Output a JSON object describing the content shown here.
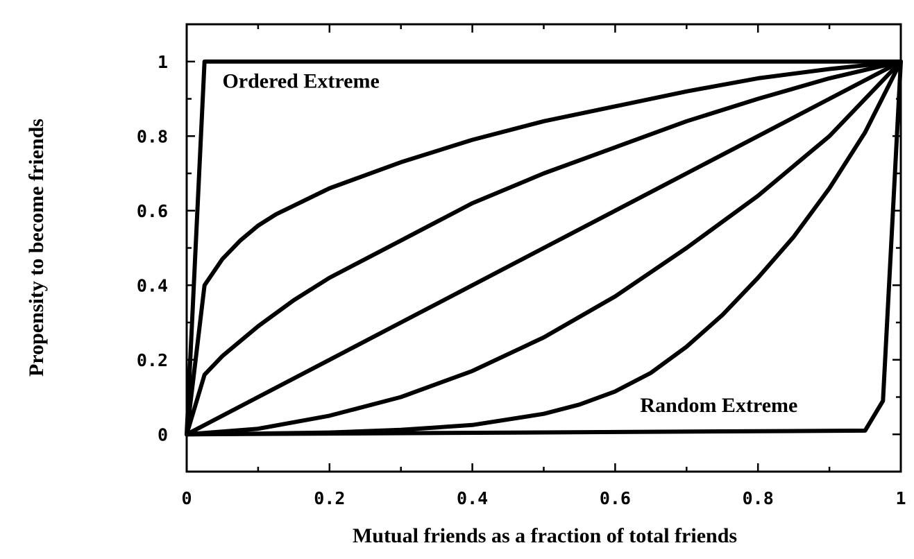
{
  "chart_data": {
    "type": "line",
    "title": "",
    "xlabel": "Mutual friends as a fraction of total friends",
    "ylabel": "Propensity to become friends",
    "xlim": [
      0,
      1
    ],
    "ylim": [
      -0.1,
      1.1
    ],
    "x_ticks": [
      0,
      0.2,
      0.4,
      0.6,
      0.8,
      1
    ],
    "x_tick_labels": [
      "0",
      "0.2",
      "0.4",
      "0.6",
      "0.8",
      "1"
    ],
    "y_ticks": [
      0,
      0.2,
      0.4,
      0.6,
      0.8,
      1
    ],
    "y_tick_labels": [
      "0",
      "0.2",
      "0.4",
      "0.6",
      "0.8",
      "1"
    ],
    "grid": false,
    "annotations": [
      {
        "text": "Ordered Extreme",
        "x": 0.05,
        "y": 0.93
      },
      {
        "text": "Random Extreme",
        "x": 0.635,
        "y": 0.06
      }
    ],
    "series": [
      {
        "x": [
          0,
          0.025,
          1
        ],
        "y": [
          0,
          1,
          1
        ]
      },
      {
        "x": [
          0,
          0.025,
          0.05,
          0.075,
          0.1,
          0.125,
          0.2,
          0.3,
          0.4,
          0.5,
          0.6,
          0.7,
          0.8,
          0.9,
          1
        ],
        "y": [
          0,
          0.4,
          0.47,
          0.52,
          0.56,
          0.59,
          0.66,
          0.73,
          0.79,
          0.84,
          0.88,
          0.92,
          0.955,
          0.98,
          1
        ]
      },
      {
        "x": [
          0,
          0.025,
          0.05,
          0.1,
          0.15,
          0.2,
          0.3,
          0.4,
          0.5,
          0.6,
          0.7,
          0.8,
          0.9,
          1
        ],
        "y": [
          0,
          0.16,
          0.21,
          0.29,
          0.36,
          0.42,
          0.52,
          0.62,
          0.7,
          0.77,
          0.84,
          0.9,
          0.955,
          1
        ]
      },
      {
        "x": [
          0,
          0.1,
          0.2,
          0.3,
          0.4,
          0.5,
          0.6,
          0.7,
          0.8,
          0.9,
          1
        ],
        "y": [
          0,
          0.1,
          0.2,
          0.3,
          0.4,
          0.5,
          0.6,
          0.7,
          0.8,
          0.9,
          1
        ]
      },
      {
        "x": [
          0,
          0.1,
          0.2,
          0.3,
          0.4,
          0.5,
          0.6,
          0.7,
          0.8,
          0.9,
          1
        ],
        "y": [
          0,
          0.015,
          0.05,
          0.1,
          0.17,
          0.26,
          0.37,
          0.5,
          0.64,
          0.8,
          1
        ]
      },
      {
        "x": [
          0,
          0.1,
          0.2,
          0.3,
          0.4,
          0.5,
          0.55,
          0.6,
          0.65,
          0.7,
          0.75,
          0.8,
          0.85,
          0.9,
          0.95,
          1
        ],
        "y": [
          0,
          0.002,
          0.005,
          0.012,
          0.025,
          0.055,
          0.08,
          0.115,
          0.165,
          0.235,
          0.32,
          0.42,
          0.53,
          0.66,
          0.81,
          1
        ]
      },
      {
        "x": [
          0,
          0.95,
          0.975,
          1
        ],
        "y": [
          0,
          0.01,
          0.09,
          1
        ]
      }
    ]
  }
}
